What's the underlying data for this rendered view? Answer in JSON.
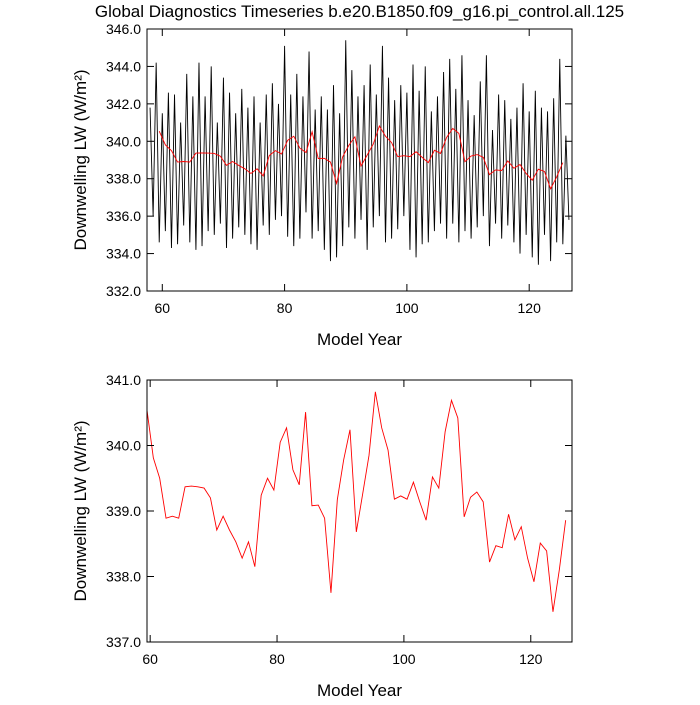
{
  "chart_data": [
    {
      "type": "line",
      "title": "Global Diagnostics Timeseries b.e20.B1850.f09_g16.pi_control.all.125",
      "xlabel": "Model Year",
      "ylabel": "Downwelling LW (W/m²)",
      "xlim": [
        57.5,
        127
      ],
      "xticks": [
        60,
        80,
        100,
        120
      ],
      "ylim": [
        332,
        346
      ],
      "yticks": [
        {
          "value": 332,
          "label": "332.0"
        },
        {
          "value": 334,
          "label": "334.0"
        },
        {
          "value": 336,
          "label": "336.0"
        },
        {
          "value": 338,
          "label": "338.0"
        },
        {
          "value": 340,
          "label": "340.0"
        },
        {
          "value": 342,
          "label": "342.0"
        },
        {
          "value": 344,
          "label": "344.0"
        },
        {
          "value": 346,
          "label": "346.0"
        }
      ],
      "series": [
        {
          "color": "#000000",
          "x": [
            58,
            58.5,
            59,
            59.5,
            60,
            60.5,
            61,
            61.5,
            62,
            62.5,
            63,
            63.5,
            64,
            64.5,
            65,
            65.5,
            66,
            66.5,
            67,
            67.5,
            68,
            68.5,
            69,
            69.5,
            70,
            70.5,
            71,
            71.5,
            72,
            72.5,
            73,
            73.5,
            74,
            74.5,
            75,
            75.5,
            76,
            76.5,
            77,
            77.5,
            78,
            78.5,
            79,
            79.5,
            80,
            80.5,
            81,
            81.5,
            82,
            82.5,
            83,
            83.5,
            84,
            84.5,
            85,
            85.5,
            86,
            86.5,
            87,
            87.5,
            88,
            88.5,
            89,
            89.5,
            90,
            90.5,
            91,
            91.5,
            92,
            92.5,
            93,
            93.5,
            94,
            94.5,
            95,
            95.5,
            96,
            96.5,
            97,
            97.5,
            98,
            98.5,
            99,
            99.5,
            100,
            100.5,
            101,
            101.5,
            102,
            102.5,
            103,
            103.5,
            104,
            104.5,
            105,
            105.5,
            106,
            106.5,
            107,
            107.5,
            108,
            108.5,
            109,
            109.5,
            110,
            110.5,
            111,
            111.5,
            112,
            112.5,
            113,
            113.5,
            114,
            114.5,
            115,
            115.5,
            116,
            116.5,
            117,
            117.5,
            118,
            118.5,
            119,
            119.5,
            120,
            120.5,
            121,
            121.5,
            122,
            122.5,
            123,
            123.5,
            124,
            124.5,
            125,
            125.5,
            126,
            126.5
          ],
          "values": [
            341.8,
            336.0,
            344.2,
            334.6,
            341.5,
            335.2,
            342.6,
            334.3,
            342.5,
            334.5,
            341.0,
            335.5,
            343.6,
            334.6,
            342.4,
            334.2,
            344.2,
            334.4,
            342.4,
            335.2,
            344.0,
            335.0,
            341.0,
            335.6,
            343.4,
            334.3,
            342.6,
            334.8,
            341.5,
            335.4,
            342.8,
            335.0,
            341.8,
            334.5,
            342.4,
            334.2,
            341.0,
            335.5,
            342.5,
            335.0,
            343.1,
            335.8,
            342.0,
            336.0,
            345.1,
            334.9,
            342.5,
            334.4,
            343.6,
            334.8,
            342.4,
            336.2,
            344.8,
            334.8,
            341.7,
            335.2,
            342.4,
            334.2,
            341.7,
            333.6,
            343.0,
            333.8,
            341.5,
            334.4,
            345.4,
            335.4,
            343.8,
            334.8,
            342.4,
            335.8,
            343.0,
            334.2,
            344.1,
            335.4,
            342.5,
            336.0,
            345.1,
            334.6,
            343.4,
            334.8,
            342.2,
            335.3,
            343.0,
            336.0,
            342.6,
            334.2,
            344.1,
            333.8,
            342.7,
            334.5,
            344.0,
            334.6,
            341.6,
            335.2,
            342.4,
            335.6,
            343.7,
            334.8,
            344.4,
            335.6,
            342.8,
            334.6,
            344.6,
            335.2,
            342.2,
            334.8,
            341.4,
            335.4,
            343.2,
            336.0,
            344.6,
            334.4,
            340.6,
            335.6,
            342.5,
            334.8,
            342.2,
            335.5,
            341.2,
            334.6,
            341.8,
            334.0,
            343.1,
            335.0,
            341.6,
            333.8,
            342.7,
            333.4,
            341.8,
            335.0,
            341.6,
            333.6,
            342.3,
            334.6,
            344.4,
            334.5,
            340.3,
            335.8
          ]
        },
        {
          "color": "#ff0000",
          "x": [
            59.5,
            60.5,
            61.5,
            62.5,
            63.5,
            64.5,
            65.5,
            66.5,
            67.5,
            68.5,
            69.5,
            70.5,
            71.5,
            72.5,
            73.5,
            74.5,
            75.5,
            76.5,
            77.5,
            78.5,
            79.5,
            80.5,
            81.5,
            82.5,
            83.5,
            84.5,
            85.5,
            86.5,
            87.5,
            88.5,
            89.5,
            90.5,
            91.5,
            92.5,
            93.5,
            94.5,
            95.5,
            96.5,
            97.5,
            98.5,
            99.5,
            100.5,
            101.5,
            102.5,
            103.5,
            104.5,
            105.5,
            106.5,
            107.5,
            108.5,
            109.5,
            110.5,
            111.5,
            112.5,
            113.5,
            114.5,
            115.5,
            116.5,
            117.5,
            118.5,
            119.5,
            120.5,
            121.5,
            122.5,
            123.5,
            124.5,
            125.5
          ],
          "values": [
            340.54,
            339.81,
            339.5,
            338.89,
            338.92,
            338.89,
            339.37,
            339.38,
            339.37,
            339.35,
            339.2,
            338.71,
            338.92,
            338.71,
            338.53,
            338.28,
            338.53,
            338.15,
            339.24,
            339.5,
            339.32,
            340.05,
            340.27,
            339.63,
            339.4,
            340.51,
            339.08,
            339.09,
            338.89,
            337.75,
            339.17,
            339.78,
            340.24,
            338.68,
            339.26,
            339.85,
            340.82,
            340.27,
            339.93,
            339.18,
            339.23,
            339.18,
            339.44,
            339.14,
            338.86,
            339.52,
            339.35,
            340.21,
            340.69,
            340.42,
            338.91,
            339.21,
            339.29,
            339.14,
            338.22,
            338.47,
            338.44,
            338.95,
            338.56,
            338.76,
            338.28,
            337.92,
            338.51,
            338.39,
            337.46,
            338.1,
            338.86
          ]
        }
      ]
    },
    {
      "type": "line",
      "xlabel": "Model Year",
      "ylabel": "Downwelling LW (W/m²)",
      "xlim": [
        59.5,
        126.5
      ],
      "xticks": [
        60,
        80,
        100,
        120
      ],
      "ylim": [
        337,
        341
      ],
      "yticks": [
        {
          "value": 337,
          "label": "337.0"
        },
        {
          "value": 338,
          "label": "338.0"
        },
        {
          "value": 339,
          "label": "339.0"
        },
        {
          "value": 340,
          "label": "340.0"
        },
        {
          "value": 341,
          "label": "341.0"
        }
      ],
      "series": [
        {
          "color": "#ff0000",
          "x": [
            59.5,
            60.5,
            61.5,
            62.5,
            63.5,
            64.5,
            65.5,
            66.5,
            67.5,
            68.5,
            69.5,
            70.5,
            71.5,
            72.5,
            73.5,
            74.5,
            75.5,
            76.5,
            77.5,
            78.5,
            79.5,
            80.5,
            81.5,
            82.5,
            83.5,
            84.5,
            85.5,
            86.5,
            87.5,
            88.5,
            89.5,
            90.5,
            91.5,
            92.5,
            93.5,
            94.5,
            95.5,
            96.5,
            97.5,
            98.5,
            99.5,
            100.5,
            101.5,
            102.5,
            103.5,
            104.5,
            105.5,
            106.5,
            107.5,
            108.5,
            109.5,
            110.5,
            111.5,
            112.5,
            113.5,
            114.5,
            115.5,
            116.5,
            117.5,
            118.5,
            119.5,
            120.5,
            121.5,
            122.5,
            123.5,
            124.5,
            125.5
          ],
          "values": [
            340.54,
            339.81,
            339.5,
            338.89,
            338.92,
            338.89,
            339.37,
            339.38,
            339.37,
            339.35,
            339.2,
            338.71,
            338.92,
            338.71,
            338.53,
            338.28,
            338.53,
            338.15,
            339.24,
            339.5,
            339.32,
            340.05,
            340.27,
            339.63,
            339.4,
            340.51,
            339.08,
            339.09,
            338.89,
            337.75,
            339.17,
            339.78,
            340.24,
            338.68,
            339.26,
            339.85,
            340.82,
            340.27,
            339.93,
            339.18,
            339.23,
            339.18,
            339.44,
            339.14,
            338.86,
            339.52,
            339.35,
            340.21,
            340.69,
            340.42,
            338.91,
            339.21,
            339.29,
            339.14,
            338.22,
            338.47,
            338.44,
            338.95,
            338.56,
            338.76,
            338.28,
            337.92,
            338.51,
            338.39,
            337.46,
            338.1,
            338.86
          ]
        }
      ]
    }
  ]
}
